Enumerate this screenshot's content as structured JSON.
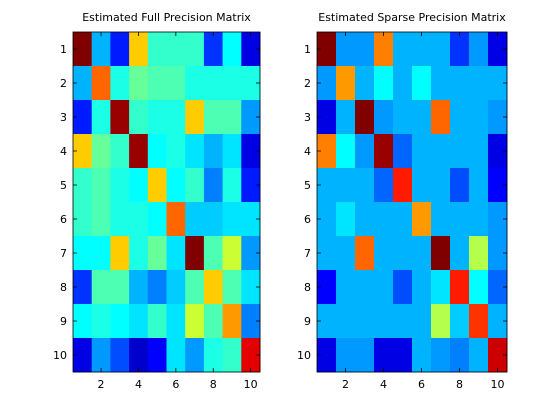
{
  "chart_data": [
    {
      "type": "heatmap",
      "title": "Estimated Full Precision Matrix",
      "colormap": "jet",
      "color_range": [
        -1,
        1
      ],
      "x_ticks": [
        2,
        4,
        6,
        8,
        10
      ],
      "y_ticks": [
        1,
        2,
        3,
        4,
        5,
        6,
        7,
        8,
        9,
        10
      ],
      "xlim": [
        0.5,
        10.5
      ],
      "ylim": [
        0.5,
        10.5
      ],
      "values": [
        [
          1.0,
          -0.4,
          -0.7,
          0.35,
          -0.15,
          -0.15,
          -0.15,
          -0.65,
          -0.25,
          -0.8
        ],
        [
          -0.4,
          0.55,
          -0.2,
          -0.05,
          -0.1,
          -0.1,
          -0.2,
          -0.2,
          -0.2,
          -0.2
        ],
        [
          -0.7,
          -0.2,
          0.95,
          -0.15,
          -0.2,
          -0.2,
          0.35,
          -0.1,
          -0.1,
          -0.45
        ],
        [
          0.35,
          -0.05,
          -0.15,
          0.95,
          -0.25,
          -0.2,
          -0.3,
          -0.4,
          -0.3,
          -0.8
        ],
        [
          -0.15,
          -0.1,
          -0.2,
          -0.25,
          0.35,
          -0.25,
          -0.15,
          -0.5,
          -0.2,
          -0.7
        ],
        [
          -0.15,
          -0.1,
          -0.2,
          -0.2,
          -0.25,
          0.55,
          -0.35,
          -0.35,
          -0.3,
          -0.3
        ],
        [
          -0.25,
          -0.25,
          0.35,
          -0.2,
          -0.05,
          -0.3,
          1.0,
          -0.1,
          0.15,
          -0.45
        ],
        [
          -0.65,
          -0.1,
          -0.1,
          -0.4,
          -0.5,
          -0.35,
          -0.1,
          0.35,
          -0.1,
          -0.3
        ],
        [
          -0.25,
          -0.2,
          -0.25,
          -0.3,
          -0.15,
          -0.3,
          0.15,
          -0.1,
          0.45,
          -0.5
        ],
        [
          -0.8,
          -0.45,
          -0.6,
          -0.85,
          -0.75,
          -0.3,
          -0.45,
          -0.2,
          -0.15,
          0.8
        ]
      ]
    },
    {
      "type": "heatmap",
      "title": "Estimated Sparse Precision Matrix",
      "colormap": "jet",
      "color_range": [
        -1,
        1
      ],
      "x_ticks": [
        2,
        4,
        6,
        8,
        10
      ],
      "y_ticks": [
        1,
        2,
        3,
        4,
        5,
        6,
        7,
        8,
        9,
        10
      ],
      "xlim": [
        0.5,
        10.5
      ],
      "ylim": [
        0.5,
        10.5
      ],
      "values": [
        [
          1.0,
          -0.45,
          -0.45,
          0.5,
          -0.4,
          -0.4,
          -0.4,
          -0.65,
          -0.45,
          -0.8
        ],
        [
          -0.45,
          0.45,
          -0.4,
          -0.25,
          -0.4,
          -0.25,
          -0.4,
          -0.4,
          -0.4,
          -0.4
        ],
        [
          -0.8,
          -0.4,
          1.0,
          -0.45,
          -0.4,
          -0.4,
          0.55,
          -0.4,
          -0.4,
          -0.45
        ],
        [
          0.5,
          -0.25,
          -0.45,
          0.95,
          -0.55,
          -0.4,
          -0.4,
          -0.4,
          -0.4,
          -0.8
        ],
        [
          -0.4,
          -0.4,
          -0.4,
          -0.55,
          0.7,
          -0.4,
          -0.4,
          -0.6,
          -0.4,
          -0.75
        ],
        [
          -0.4,
          -0.3,
          -0.4,
          -0.4,
          -0.4,
          0.45,
          -0.4,
          -0.4,
          -0.4,
          -0.45
        ],
        [
          -0.4,
          -0.4,
          0.55,
          -0.4,
          -0.4,
          -0.4,
          1.0,
          -0.4,
          0.1,
          -0.45
        ],
        [
          -0.75,
          -0.4,
          -0.4,
          -0.4,
          -0.6,
          -0.4,
          -0.3,
          0.7,
          -0.25,
          -0.55
        ],
        [
          -0.4,
          -0.4,
          -0.4,
          -0.4,
          -0.4,
          -0.4,
          0.1,
          -0.35,
          0.65,
          -0.4
        ],
        [
          -0.8,
          -0.45,
          -0.45,
          -0.8,
          -0.8,
          -0.4,
          -0.45,
          -0.5,
          -0.4,
          0.85
        ]
      ]
    }
  ]
}
